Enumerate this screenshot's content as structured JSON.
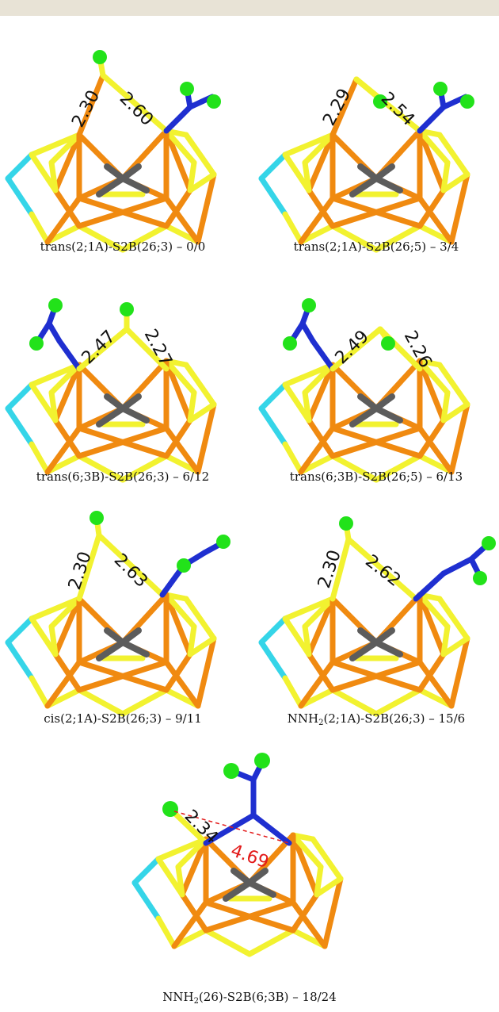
{
  "colors": {
    "sulfur": "#f2f230",
    "iron": "#f08a10",
    "carbon": "#5c5c5c",
    "sulfur_alt": "#35d5e8",
    "nitrogen": "#1f2fd0",
    "hydrogen": "#22e21a",
    "distance_highlight": "#e21a1a"
  },
  "panels": [
    {
      "caption_pre": "trans(2;1A)-S2B(26;3) – 0/0",
      "caption_sub": "",
      "caption_post": "",
      "label_left": "2.30",
      "label_right": "2.60",
      "label_extra": ""
    },
    {
      "caption_pre": "trans(2;1A)-S2B(26;5) – 3/4",
      "caption_sub": "",
      "caption_post": "",
      "label_left": "2.29",
      "label_right": "2.54",
      "label_extra": ""
    },
    {
      "caption_pre": "trans(6;3B)-S2B(26;3) – 6/12",
      "caption_sub": "",
      "caption_post": "",
      "label_left": "2.47",
      "label_right": "2.27",
      "label_extra": ""
    },
    {
      "caption_pre": "trans(6;3B)-S2B(26;5) – 6/13",
      "caption_sub": "",
      "caption_post": "",
      "label_left": "2.49",
      "label_right": "2.26",
      "label_extra": ""
    },
    {
      "caption_pre": "cis(2;1A)-S2B(26;3) – 9/11",
      "caption_sub": "",
      "caption_post": "",
      "label_left": "2.30",
      "label_right": "2.63",
      "label_extra": ""
    },
    {
      "caption_pre": "NNH",
      "caption_sub": "2",
      "caption_post": "(2;1A)-S2B(26;3) – 15/6",
      "label_left": "2.30",
      "label_right": "2.62",
      "label_extra": ""
    },
    {
      "caption_pre": "NNH",
      "caption_sub": "2",
      "caption_post": "(26)-S2B(6;3B) – 18/24",
      "label_left": "2.34",
      "label_right": "",
      "label_extra": "4.69"
    }
  ]
}
